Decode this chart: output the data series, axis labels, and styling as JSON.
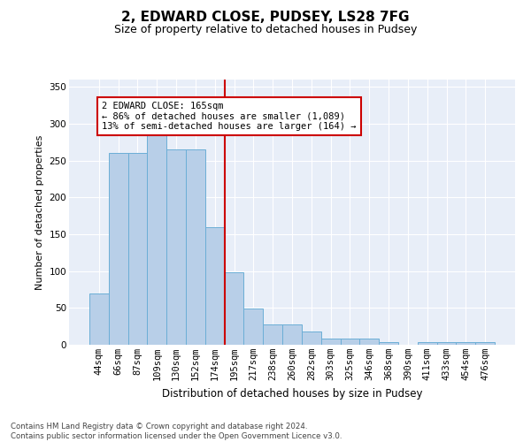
{
  "title": "2, EDWARD CLOSE, PUDSEY, LS28 7FG",
  "subtitle": "Size of property relative to detached houses in Pudsey",
  "xlabel": "Distribution of detached houses by size in Pudsey",
  "ylabel": "Number of detached properties",
  "footer_line1": "Contains HM Land Registry data © Crown copyright and database right 2024.",
  "footer_line2": "Contains public sector information licensed under the Open Government Licence v3.0.",
  "bar_labels": [
    "44sqm",
    "66sqm",
    "87sqm",
    "109sqm",
    "130sqm",
    "152sqm",
    "174sqm",
    "195sqm",
    "217sqm",
    "238sqm",
    "260sqm",
    "282sqm",
    "303sqm",
    "325sqm",
    "346sqm",
    "368sqm",
    "390sqm",
    "411sqm",
    "433sqm",
    "454sqm",
    "476sqm"
  ],
  "bar_values": [
    70,
    260,
    260,
    293,
    265,
    265,
    160,
    98,
    49,
    28,
    28,
    18,
    9,
    8,
    8,
    4,
    0,
    4,
    4,
    4,
    4
  ],
  "property_line_x": 6.5,
  "annotation_title": "2 EDWARD CLOSE: 165sqm",
  "annotation_line1": "← 86% of detached houses are smaller (1,089)",
  "annotation_line2": "13% of semi-detached houses are larger (164) →",
  "bar_color": "#b8cfe8",
  "bar_edge_color": "#6baed6",
  "line_color": "#cc0000",
  "annotation_box_edgecolor": "#cc0000",
  "background_color": "#e8eef8",
  "ylim": [
    0,
    360
  ],
  "yticks": [
    0,
    50,
    100,
    150,
    200,
    250,
    300,
    350
  ],
  "title_fontsize": 11,
  "subtitle_fontsize": 9,
  "ylabel_fontsize": 8,
  "xlabel_fontsize": 8.5,
  "tick_fontsize": 7.5,
  "annotation_fontsize": 7.5
}
